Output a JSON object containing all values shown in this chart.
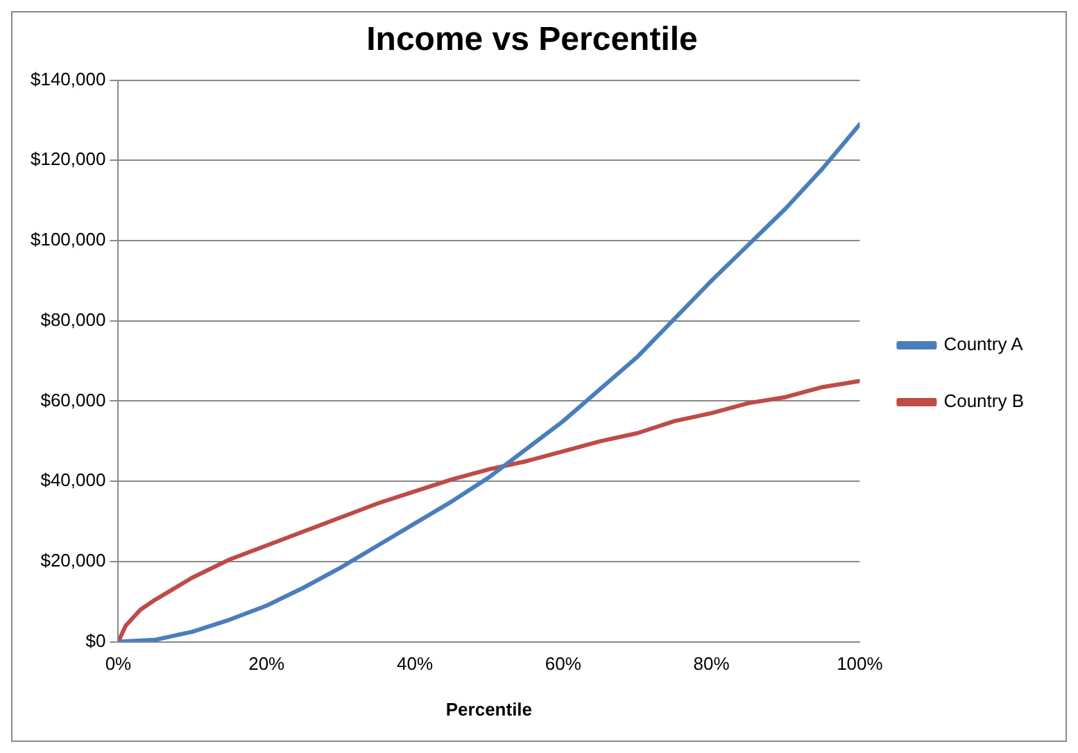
{
  "chart_data": {
    "type": "line",
    "title": "Income vs Percentile",
    "xlabel": "Percentile",
    "x": [
      0,
      5,
      10,
      15,
      20,
      25,
      30,
      35,
      40,
      45,
      50,
      55,
      60,
      65,
      70,
      75,
      80,
      85,
      90,
      95,
      100
    ],
    "series": [
      {
        "name": "Country A",
        "color": "#4a7ebb",
        "values": [
          0,
          500,
          2500,
          5500,
          9000,
          13500,
          18500,
          24000,
          29500,
          35000,
          41000,
          48000,
          55000,
          63000,
          71000,
          80500,
          90000,
          99000,
          108000,
          118000,
          129000
        ]
      },
      {
        "name": "Country B",
        "color": "#be4b48",
        "x": [
          0,
          1,
          3,
          5,
          10,
          15,
          20,
          25,
          30,
          35,
          40,
          45,
          50,
          55,
          60,
          65,
          70,
          75,
          80,
          85,
          90,
          95,
          100
        ],
        "values": [
          0,
          4000,
          8000,
          10500,
          16000,
          20500,
          24000,
          27500,
          31000,
          34500,
          37500,
          40500,
          43000,
          45000,
          47500,
          50000,
          52000,
          55000,
          57000,
          59500,
          61000,
          63500,
          65000
        ]
      }
    ],
    "xlim": [
      0,
      100
    ],
    "xticks": [
      {
        "value": 0,
        "label": "0%"
      },
      {
        "value": 20,
        "label": "20%"
      },
      {
        "value": 40,
        "label": "40%"
      },
      {
        "value": 60,
        "label": "60%"
      },
      {
        "value": 80,
        "label": "80%"
      },
      {
        "value": 100,
        "label": "100%"
      }
    ],
    "ylim": [
      0,
      140000
    ],
    "yticks": [
      {
        "value": 0,
        "label": "$0"
      },
      {
        "value": 20000,
        "label": "$20,000"
      },
      {
        "value": 40000,
        "label": "$40,000"
      },
      {
        "value": 60000,
        "label": "$60,000"
      },
      {
        "value": 80000,
        "label": "$80,000"
      },
      {
        "value": 100000,
        "label": "$100,000"
      },
      {
        "value": 120000,
        "label": "$120,000"
      },
      {
        "value": 140000,
        "label": "$140,000"
      }
    ],
    "grid": "y",
    "legend": "right",
    "marker": "none",
    "line_style": "solid"
  }
}
